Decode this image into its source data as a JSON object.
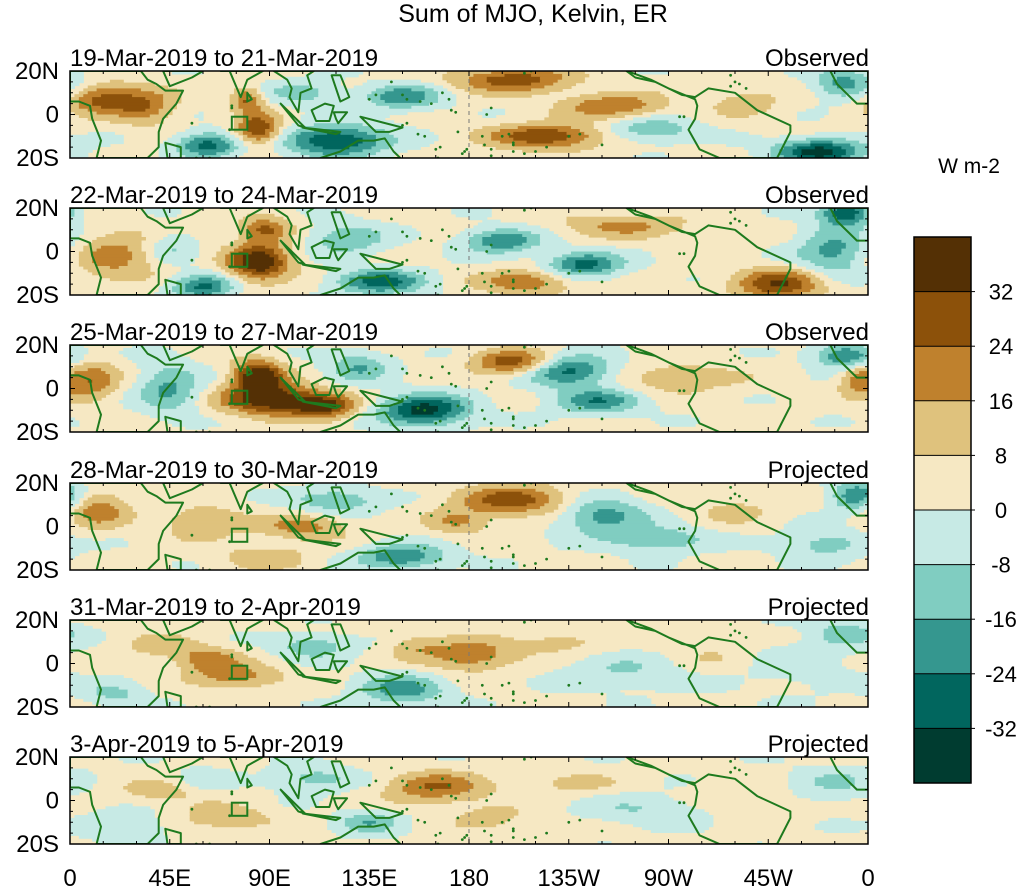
{
  "chart_data": {
    "type": "heatmap",
    "title": "Sum of MJO, Kelvin, ER",
    "colorbar": {
      "label": "W m-2",
      "levels": [
        -40,
        -32,
        -24,
        -16,
        -8,
        0,
        8,
        16,
        24,
        32,
        40
      ],
      "tick_labels": [
        "32",
        "24",
        "16",
        "8",
        "0",
        "-8",
        "-16",
        "-24",
        "-32"
      ],
      "colors": [
        "#003c30",
        "#01665e",
        "#35978f",
        "#80cdc1",
        "#c7eae5",
        "#f6e8c3",
        "#dfc27d",
        "#bf812d",
        "#8c510a",
        "#543005"
      ]
    },
    "x_axis": {
      "range_deg_east": [
        0,
        360
      ],
      "tick_positions_deg": [
        0,
        45,
        90,
        135,
        180,
        225,
        270,
        315,
        360
      ],
      "tick_labels": [
        "0",
        "45E",
        "90E",
        "135E",
        "180",
        "135W",
        "90W",
        "45W",
        "0"
      ]
    },
    "y_axis": {
      "range_deg": [
        -20,
        20
      ],
      "tick_positions_deg": [
        20,
        0,
        -20
      ],
      "tick_labels": [
        "20N",
        "0",
        "20S"
      ]
    },
    "panels": [
      {
        "period": "19-Mar-2019 to 21-Mar-2019",
        "type": "Observed",
        "features": [
          {
            "lon": 15,
            "lat": 7,
            "sx": 12,
            "sy": 5,
            "amp": 26
          },
          {
            "lon": 35,
            "lat": 4,
            "sx": 9,
            "sy": 6,
            "amp": 18
          },
          {
            "lon": 62,
            "lat": -14,
            "sx": 10,
            "sy": 4,
            "amp": -30
          },
          {
            "lon": 85,
            "lat": -7,
            "sx": 7,
            "sy": 5,
            "amp": 32
          },
          {
            "lon": 80,
            "lat": 7,
            "sx": 5,
            "sy": 4,
            "amp": 24
          },
          {
            "lon": 120,
            "lat": -12,
            "sx": 16,
            "sy": 5,
            "amp": -36
          },
          {
            "lon": 105,
            "lat": 10,
            "sx": 12,
            "sy": 4,
            "amp": -14
          },
          {
            "lon": 150,
            "lat": 8,
            "sx": 12,
            "sy": 4,
            "amp": -24
          },
          {
            "lon": 200,
            "lat": 16,
            "sx": 18,
            "sy": 4,
            "amp": 28
          },
          {
            "lon": 215,
            "lat": -10,
            "sx": 18,
            "sy": 4,
            "amp": 30
          },
          {
            "lon": 245,
            "lat": 4,
            "sx": 16,
            "sy": 4,
            "amp": 22
          },
          {
            "lon": 262,
            "lat": -7,
            "sx": 14,
            "sy": 4,
            "amp": -18
          },
          {
            "lon": 305,
            "lat": 6,
            "sx": 12,
            "sy": 5,
            "amp": 10
          },
          {
            "lon": 338,
            "lat": -17,
            "sx": 14,
            "sy": 4,
            "amp": -38
          },
          {
            "lon": 350,
            "lat": 14,
            "sx": 10,
            "sy": 5,
            "amp": -22
          }
        ]
      },
      {
        "period": "22-Mar-2019 to 24-Mar-2019",
        "type": "Observed",
        "features": [
          {
            "lon": 20,
            "lat": -2,
            "sx": 14,
            "sy": 8,
            "amp": 18
          },
          {
            "lon": 45,
            "lat": 2,
            "sx": 8,
            "sy": 5,
            "amp": -12
          },
          {
            "lon": 85,
            "lat": -5,
            "sx": 10,
            "sy": 6,
            "amp": 38
          },
          {
            "lon": 88,
            "lat": 10,
            "sx": 8,
            "sy": 4,
            "amp": 24
          },
          {
            "lon": 60,
            "lat": -16,
            "sx": 10,
            "sy": 4,
            "amp": -28
          },
          {
            "lon": 140,
            "lat": -14,
            "sx": 14,
            "sy": 4,
            "amp": -30
          },
          {
            "lon": 125,
            "lat": 6,
            "sx": 12,
            "sy": 5,
            "amp": -18
          },
          {
            "lon": 195,
            "lat": 5,
            "sx": 12,
            "sy": 4,
            "amp": -26
          },
          {
            "lon": 232,
            "lat": -6,
            "sx": 12,
            "sy": 4,
            "amp": -30
          },
          {
            "lon": 205,
            "lat": -14,
            "sx": 14,
            "sy": 4,
            "amp": 22
          },
          {
            "lon": 250,
            "lat": 12,
            "sx": 20,
            "sy": 4,
            "amp": 16
          },
          {
            "lon": 320,
            "lat": -15,
            "sx": 14,
            "sy": 5,
            "amp": 30
          },
          {
            "lon": 345,
            "lat": 0,
            "sx": 12,
            "sy": 8,
            "amp": -22
          },
          {
            "lon": 350,
            "lat": 18,
            "sx": 8,
            "sy": 4,
            "amp": -34
          }
        ]
      },
      {
        "period": "25-Mar-2019 to 27-Mar-2019",
        "type": "Observed",
        "features": [
          {
            "lon": 10,
            "lat": 4,
            "sx": 8,
            "sy": 6,
            "amp": 22
          },
          {
            "lon": 45,
            "lat": 0,
            "sx": 10,
            "sy": 8,
            "amp": -20
          },
          {
            "lon": 85,
            "lat": 6,
            "sx": 8,
            "sy": 5,
            "amp": 38
          },
          {
            "lon": 90,
            "lat": -5,
            "sx": 15,
            "sy": 5,
            "amp": 38
          },
          {
            "lon": 115,
            "lat": -8,
            "sx": 10,
            "sy": 4,
            "amp": 30
          },
          {
            "lon": 160,
            "lat": -10,
            "sx": 14,
            "sy": 5,
            "amp": -38
          },
          {
            "lon": 130,
            "lat": 10,
            "sx": 10,
            "sy": 5,
            "amp": -18
          },
          {
            "lon": 200,
            "lat": 12,
            "sx": 12,
            "sy": 4,
            "amp": 30
          },
          {
            "lon": 225,
            "lat": 8,
            "sx": 14,
            "sy": 5,
            "amp": -30
          },
          {
            "lon": 238,
            "lat": -6,
            "sx": 14,
            "sy": 4,
            "amp": -24
          },
          {
            "lon": 275,
            "lat": 5,
            "sx": 20,
            "sy": 5,
            "amp": 12
          },
          {
            "lon": 350,
            "lat": 15,
            "sx": 10,
            "sy": 4,
            "amp": -28
          },
          {
            "lon": 355,
            "lat": 4,
            "sx": 6,
            "sy": 5,
            "amp": 18
          }
        ]
      },
      {
        "period": "28-Mar-2019 to 30-Mar-2019",
        "type": "Projected",
        "features": [
          {
            "lon": 12,
            "lat": 8,
            "sx": 10,
            "sy": 6,
            "amp": 20
          },
          {
            "lon": 60,
            "lat": 2,
            "sx": 12,
            "sy": 5,
            "amp": 16
          },
          {
            "lon": 105,
            "lat": 0,
            "sx": 14,
            "sy": 4,
            "amp": 18
          },
          {
            "lon": 88,
            "lat": -14,
            "sx": 14,
            "sy": 4,
            "amp": 12
          },
          {
            "lon": 120,
            "lat": 12,
            "sx": 14,
            "sy": 4,
            "amp": -18
          },
          {
            "lon": 150,
            "lat": -14,
            "sx": 14,
            "sy": 4,
            "amp": -26
          },
          {
            "lon": 200,
            "lat": 12,
            "sx": 18,
            "sy": 5,
            "amp": 26
          },
          {
            "lon": 175,
            "lat": 2,
            "sx": 10,
            "sy": 4,
            "amp": 14
          },
          {
            "lon": 240,
            "lat": 5,
            "sx": 14,
            "sy": 6,
            "amp": -22
          },
          {
            "lon": 265,
            "lat": -6,
            "sx": 16,
            "sy": 4,
            "amp": -18
          },
          {
            "lon": 300,
            "lat": 8,
            "sx": 14,
            "sy": 5,
            "amp": 8
          },
          {
            "lon": 340,
            "lat": -8,
            "sx": 14,
            "sy": 5,
            "amp": -14
          },
          {
            "lon": 355,
            "lat": 14,
            "sx": 8,
            "sy": 5,
            "amp": -26
          }
        ]
      },
      {
        "period": "31-Mar-2019 to 2-Apr-2019",
        "type": "Projected",
        "features": [
          {
            "lon": 20,
            "lat": -14,
            "sx": 10,
            "sy": 4,
            "amp": -12
          },
          {
            "lon": 40,
            "lat": 8,
            "sx": 12,
            "sy": 4,
            "amp": 10
          },
          {
            "lon": 62,
            "lat": 2,
            "sx": 10,
            "sy": 4,
            "amp": 18
          },
          {
            "lon": 75,
            "lat": -6,
            "sx": 14,
            "sy": 4,
            "amp": 18
          },
          {
            "lon": 110,
            "lat": 8,
            "sx": 12,
            "sy": 4,
            "amp": -16
          },
          {
            "lon": 150,
            "lat": -12,
            "sx": 14,
            "sy": 5,
            "amp": -22
          },
          {
            "lon": 180,
            "lat": 4,
            "sx": 14,
            "sy": 5,
            "amp": 22
          },
          {
            "lon": 155,
            "lat": 8,
            "sx": 8,
            "sy": 4,
            "amp": 10
          },
          {
            "lon": 220,
            "lat": 10,
            "sx": 14,
            "sy": 4,
            "amp": 10
          },
          {
            "lon": 250,
            "lat": -4,
            "sx": 20,
            "sy": 6,
            "amp": -10
          },
          {
            "lon": 290,
            "lat": 4,
            "sx": 14,
            "sy": 5,
            "amp": 6
          },
          {
            "lon": 330,
            "lat": 0,
            "sx": 20,
            "sy": 10,
            "amp": -6
          },
          {
            "lon": 350,
            "lat": 14,
            "sx": 10,
            "sy": 4,
            "amp": -14
          }
        ]
      },
      {
        "period": "3-Apr-2019 to 5-Apr-2019",
        "type": "Projected",
        "features": [
          {
            "lon": 25,
            "lat": -12,
            "sx": 12,
            "sy": 5,
            "amp": -12
          },
          {
            "lon": 40,
            "lat": 4,
            "sx": 14,
            "sy": 4,
            "amp": 10
          },
          {
            "lon": 70,
            "lat": -8,
            "sx": 14,
            "sy": 4,
            "amp": 14
          },
          {
            "lon": 60,
            "lat": 10,
            "sx": 8,
            "sy": 4,
            "amp": -8
          },
          {
            "lon": 110,
            "lat": 10,
            "sx": 14,
            "sy": 4,
            "amp": -14
          },
          {
            "lon": 135,
            "lat": -10,
            "sx": 10,
            "sy": 4,
            "amp": -16
          },
          {
            "lon": 165,
            "lat": 6,
            "sx": 16,
            "sy": 5,
            "amp": 22
          },
          {
            "lon": 190,
            "lat": -8,
            "sx": 12,
            "sy": 4,
            "amp": 10
          },
          {
            "lon": 225,
            "lat": 8,
            "sx": 16,
            "sy": 4,
            "amp": 8
          },
          {
            "lon": 260,
            "lat": -4,
            "sx": 20,
            "sy": 5,
            "amp": -10
          },
          {
            "lon": 300,
            "lat": 2,
            "sx": 14,
            "sy": 5,
            "amp": 6
          },
          {
            "lon": 345,
            "lat": 8,
            "sx": 14,
            "sy": 6,
            "amp": -10
          }
        ]
      }
    ]
  }
}
